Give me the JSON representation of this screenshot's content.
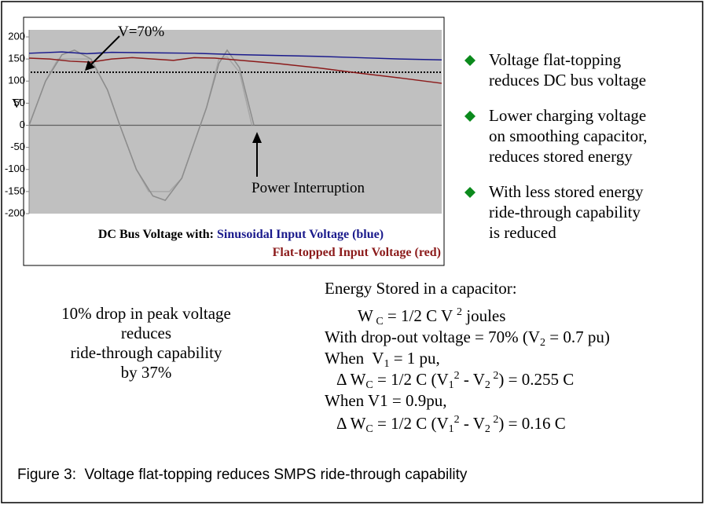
{
  "chart_data": {
    "type": "line",
    "ylim": [
      -200,
      200
    ],
    "yticks": [
      200,
      150,
      100,
      50,
      0,
      -50,
      -100,
      -150,
      -200
    ],
    "xlim": [
      0,
      100
    ],
    "ylabel": "V",
    "legend_title": "DC Bus Voltage with:",
    "reference_line": {
      "value": 120,
      "color": "#000000",
      "style": "dotted"
    },
    "annotations": [
      "V=70%",
      "Power Interruption"
    ],
    "background": "#c0c0c0",
    "series": [
      {
        "name": "Sinusoidal Input Voltage (blue)",
        "color": "#1a1a8c",
        "x": [
          0,
          8,
          14,
          20,
          30,
          40,
          50,
          60,
          70,
          80,
          90,
          100
        ],
        "values": [
          163,
          166,
          162,
          165,
          164,
          163,
          160,
          158,
          156,
          153,
          150,
          148
        ]
      },
      {
        "name": "Flat-topped Input Voltage (red)",
        "color": "#8b1a1a",
        "x": [
          0,
          5,
          10,
          15,
          20,
          25,
          30,
          35,
          40,
          45,
          50,
          60,
          70,
          80,
          90,
          100
        ],
        "values": [
          152,
          150,
          145,
          143,
          150,
          153,
          150,
          147,
          153,
          152,
          148,
          140,
          130,
          118,
          107,
          95
        ]
      },
      {
        "color": "#8c8c8c",
        "x": [
          0,
          4,
          8,
          11,
          15,
          19,
          22,
          26,
          30,
          33,
          37,
          40,
          43,
          46,
          48,
          51,
          54.5
        ],
        "values": [
          0,
          100,
          160,
          170,
          150,
          80,
          0,
          -100,
          -160,
          -170,
          -120,
          -40,
          40,
          140,
          170,
          130,
          0
        ]
      },
      {
        "color": "#a6a6a6",
        "x": [
          0,
          4,
          7,
          11,
          15,
          19,
          22,
          26,
          29,
          34,
          37,
          40,
          43,
          46,
          48,
          51,
          54
        ],
        "values": [
          0,
          100,
          150,
          150,
          150,
          80,
          0,
          -100,
          -150,
          -150,
          -120,
          -40,
          40,
          150,
          155,
          120,
          0
        ]
      }
    ]
  },
  "bullets": [
    [
      "Voltage flat-topping",
      "reduces DC bus voltage"
    ],
    [
      "Lower charging voltage",
      "on smoothing capacitor,",
      "reduces stored energy"
    ],
    [
      "With less stored energy",
      "ride-through capability",
      "is reduced"
    ]
  ],
  "note": [
    "10% drop in peak voltage",
    "reduces",
    "ride-through capability",
    "by 37%"
  ],
  "equations": [
    [
      {
        "text": "Energy Stored in a capacitor:"
      }
    ],
    [
      {
        "text": "W"
      },
      {
        "text": " C",
        "style": "sub"
      },
      {
        "text": " = 1/2 C V "
      },
      {
        "text": "2",
        "style": "sup"
      },
      {
        "text": " joules"
      }
    ],
    [
      {
        "text": "With drop-out voltage = 70% (V"
      },
      {
        "text": "2",
        "style": "sub"
      },
      {
        "text": " = 0.7 pu)"
      }
    ],
    [
      {
        "text": "When  V"
      },
      {
        "text": "1",
        "style": "sub"
      },
      {
        "text": " = 1 pu,"
      }
    ],
    [
      {
        "text": "Δ W"
      },
      {
        "text": "C",
        "style": "sub"
      },
      {
        "text": " = 1/2 C (V"
      },
      {
        "text": "1",
        "style": "sub"
      },
      {
        "text": "2",
        "style": "sup"
      },
      {
        "text": " - V"
      },
      {
        "text": "2",
        "style": "sub"
      },
      {
        "text": " 2",
        "style": "sup"
      },
      {
        "text": ") = 0.255 C"
      }
    ],
    [
      {
        "text": "When V1 = 0.9pu,"
      }
    ],
    [
      {
        "text": "Δ W"
      },
      {
        "text": "C",
        "style": "sub"
      },
      {
        "text": " = 1/2 C (V"
      },
      {
        "text": "1",
        "style": "sub"
      },
      {
        "text": "2",
        "style": "sup"
      },
      {
        "text": " - V"
      },
      {
        "text": "2",
        "style": "sub"
      },
      {
        "text": " 2",
        "style": "sup"
      },
      {
        "text": ") = 0.16 C"
      }
    ]
  ],
  "caption": "Figure 3:  Voltage flat-topping reduces SMPS ride-through capability"
}
